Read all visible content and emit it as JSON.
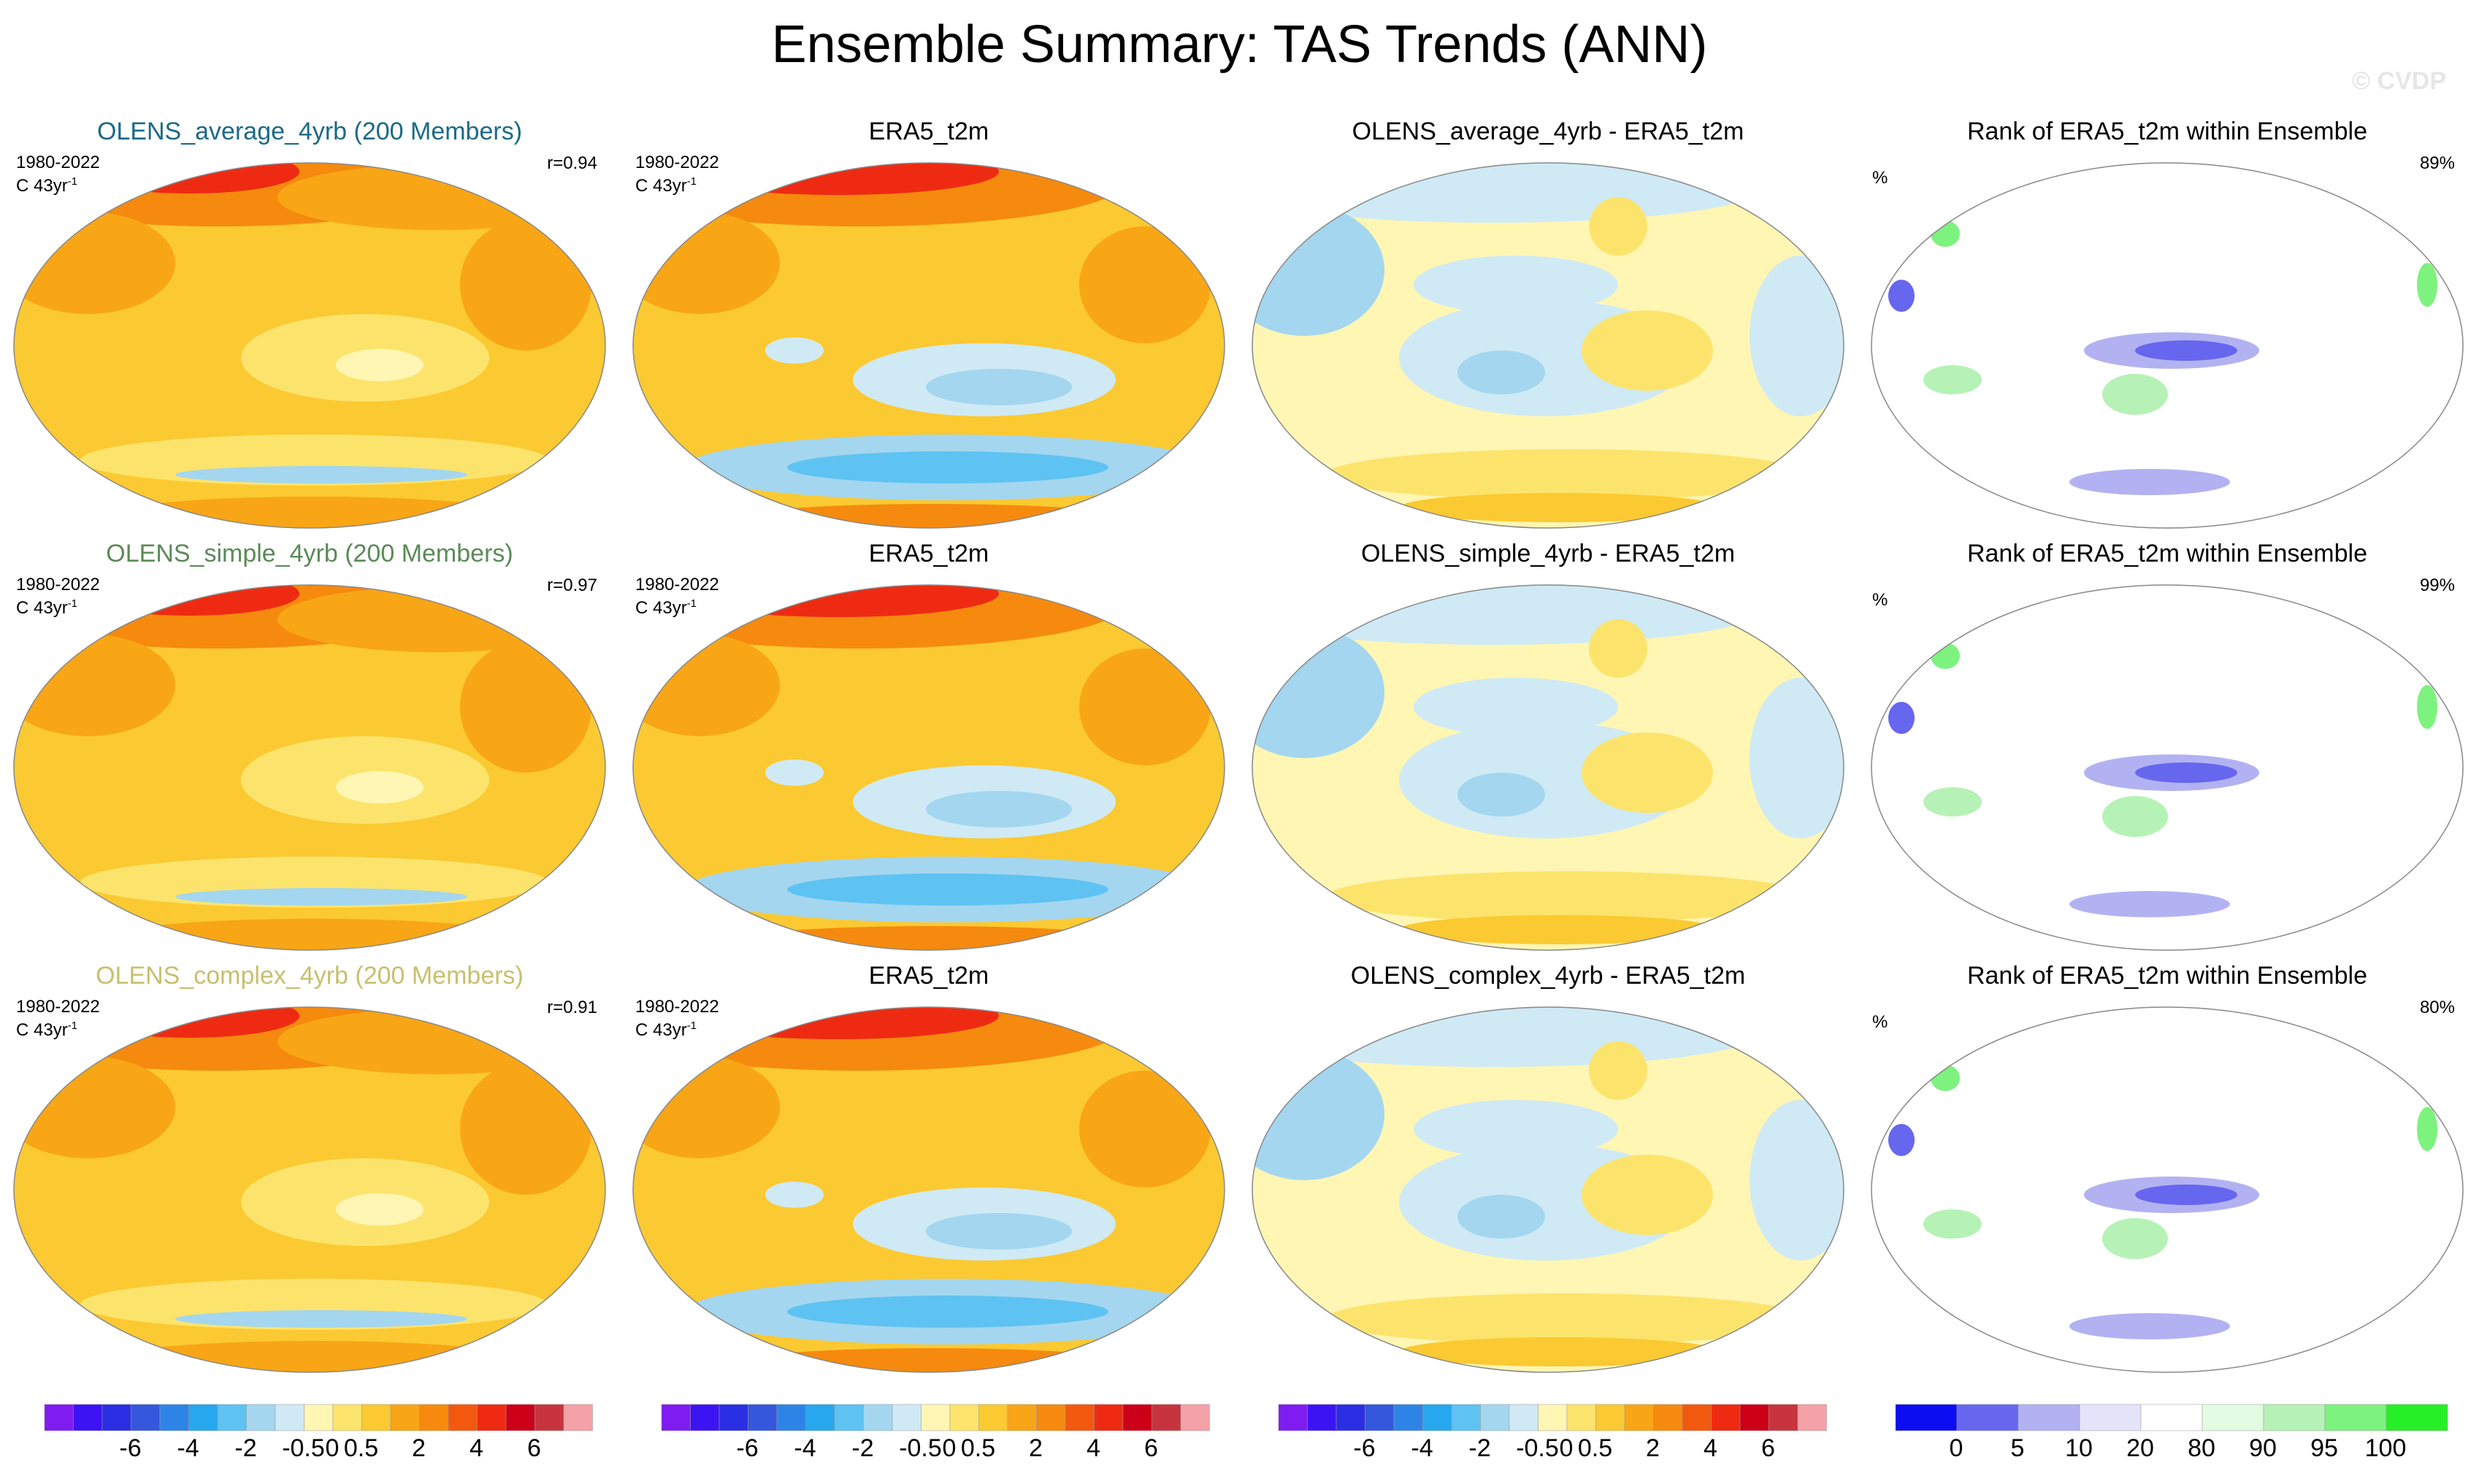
{
  "figure": {
    "title": "Ensemble Summary: TAS Trends (ANN)",
    "watermark": "© CVDP"
  },
  "chart_data": [
    {
      "type": "heatmap",
      "projection": "Robinson",
      "panel": "row1-col1",
      "title": "OLENS_average_4yrb (200 Members)",
      "title_color": "#1b6a86",
      "period": "1980-2022",
      "units": "C 43yr",
      "units_sup": "-1",
      "corr": "r=0.94",
      "field": "ensemble-mean trend"
    },
    {
      "type": "heatmap",
      "projection": "Robinson",
      "panel": "row1-col2",
      "title": "ERA5_t2m",
      "period": "1980-2022",
      "units": "C 43yr",
      "units_sup": "-1",
      "field": "observed trend"
    },
    {
      "type": "heatmap",
      "projection": "Robinson",
      "panel": "row1-col3",
      "title": "OLENS_average_4yrb - ERA5_t2m",
      "field": "difference"
    },
    {
      "type": "heatmap",
      "projection": "Robinson",
      "panel": "row1-col4",
      "title": "Rank of ERA5_t2m within Ensemble",
      "pct_left": "%",
      "pct_right": "89%",
      "field": "rank"
    },
    {
      "type": "heatmap",
      "projection": "Robinson",
      "panel": "row2-col1",
      "title": "OLENS_simple_4yrb (200 Members)",
      "title_color": "#5b8a57",
      "period": "1980-2022",
      "units": "C 43yr",
      "units_sup": "-1",
      "corr": "r=0.97",
      "field": "ensemble-mean trend"
    },
    {
      "type": "heatmap",
      "projection": "Robinson",
      "panel": "row2-col2",
      "title": "ERA5_t2m",
      "period": "1980-2022",
      "units": "C 43yr",
      "units_sup": "-1",
      "field": "observed trend"
    },
    {
      "type": "heatmap",
      "projection": "Robinson",
      "panel": "row2-col3",
      "title": "OLENS_simple_4yrb - ERA5_t2m",
      "field": "difference"
    },
    {
      "type": "heatmap",
      "projection": "Robinson",
      "panel": "row2-col4",
      "title": "Rank of ERA5_t2m within Ensemble",
      "pct_left": "%",
      "pct_right": "99%",
      "field": "rank"
    },
    {
      "type": "heatmap",
      "projection": "Robinson",
      "panel": "row3-col1",
      "title": "OLENS_complex_4yrb (200 Members)",
      "title_color": "#c8bf6e",
      "period": "1980-2022",
      "units": "C 43yr",
      "units_sup": "-1",
      "corr": "r=0.91",
      "field": "ensemble-mean trend"
    },
    {
      "type": "heatmap",
      "projection": "Robinson",
      "panel": "row3-col2",
      "title": "ERA5_t2m",
      "period": "1980-2022",
      "units": "C 43yr",
      "units_sup": "-1",
      "field": "observed trend"
    },
    {
      "type": "heatmap",
      "projection": "Robinson",
      "panel": "row3-col3",
      "title": "OLENS_complex_4yrb - ERA5_t2m",
      "field": "difference"
    },
    {
      "type": "heatmap",
      "projection": "Robinson",
      "panel": "row3-col4",
      "title": "Rank of ERA5_t2m within Ensemble",
      "pct_left": "%",
      "pct_right": "80%",
      "field": "rank"
    }
  ],
  "colorbars": {
    "trend": {
      "colors": [
        "#7f1cf1",
        "#3c14f4",
        "#2b2fe3",
        "#3557dc",
        "#2e84e6",
        "#27a7ee",
        "#5ec3f2",
        "#a4d6ef",
        "#cfeaf5",
        "#fff6b4",
        "#fce46c",
        "#fbc931",
        "#f8a616",
        "#f58a0e",
        "#f3580f",
        "#ee2b12",
        "#cc0018",
        "#c7343e",
        "#f4a1a7"
      ],
      "labels": [
        "-6",
        "-4",
        "-2",
        "-0.5",
        "0",
        "0.5",
        "2",
        "4",
        "6"
      ],
      "label_after_box": [
        2,
        4,
        6,
        8,
        9,
        10,
        12,
        14,
        16
      ]
    },
    "rank": {
      "colors": [
        "#0d0df2",
        "#6666ef",
        "#b2b2f2",
        "#e3e3fa",
        "#ffffff",
        "#e3fae3",
        "#b6f2b6",
        "#7ef27e",
        "#27ef27"
      ],
      "labels": [
        "0",
        "5",
        "10",
        "20",
        "80",
        "90",
        "95",
        "100"
      ],
      "label_after_box": [
        0,
        1,
        2,
        3,
        4,
        5,
        6,
        7
      ]
    }
  }
}
